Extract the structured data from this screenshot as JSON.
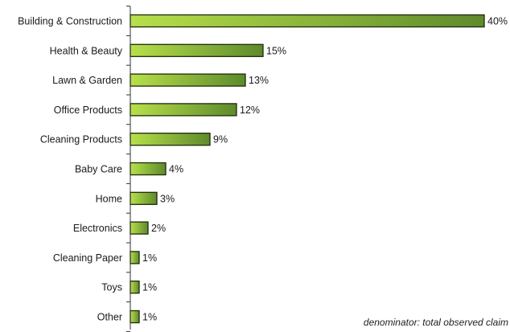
{
  "chart_data": {
    "type": "bar",
    "orientation": "horizontal",
    "categories": [
      "Building & Construction",
      "Health & Beauty",
      "Lawn & Garden",
      "Office Products",
      "Cleaning Products",
      "Baby Care",
      "Home",
      "Electronics",
      "Cleaning Paper",
      "Toys",
      "Other"
    ],
    "values": [
      40,
      15,
      13,
      12,
      9,
      4,
      3,
      2,
      1,
      1,
      1
    ],
    "value_labels": [
      "40%",
      "15%",
      "13%",
      "12%",
      "9%",
      "4%",
      "3%",
      "2%",
      "1%",
      "1%",
      "1%"
    ],
    "unit": "%",
    "xlim": [
      0,
      40
    ],
    "grid": false,
    "legend": "none",
    "annotation": "denominator: total observed claim",
    "colors": {
      "bar_light": "#b8e04a",
      "bar_dark": "#5e8a2c",
      "bar_outline": "#1c2a0a",
      "axis": "#333333"
    }
  }
}
